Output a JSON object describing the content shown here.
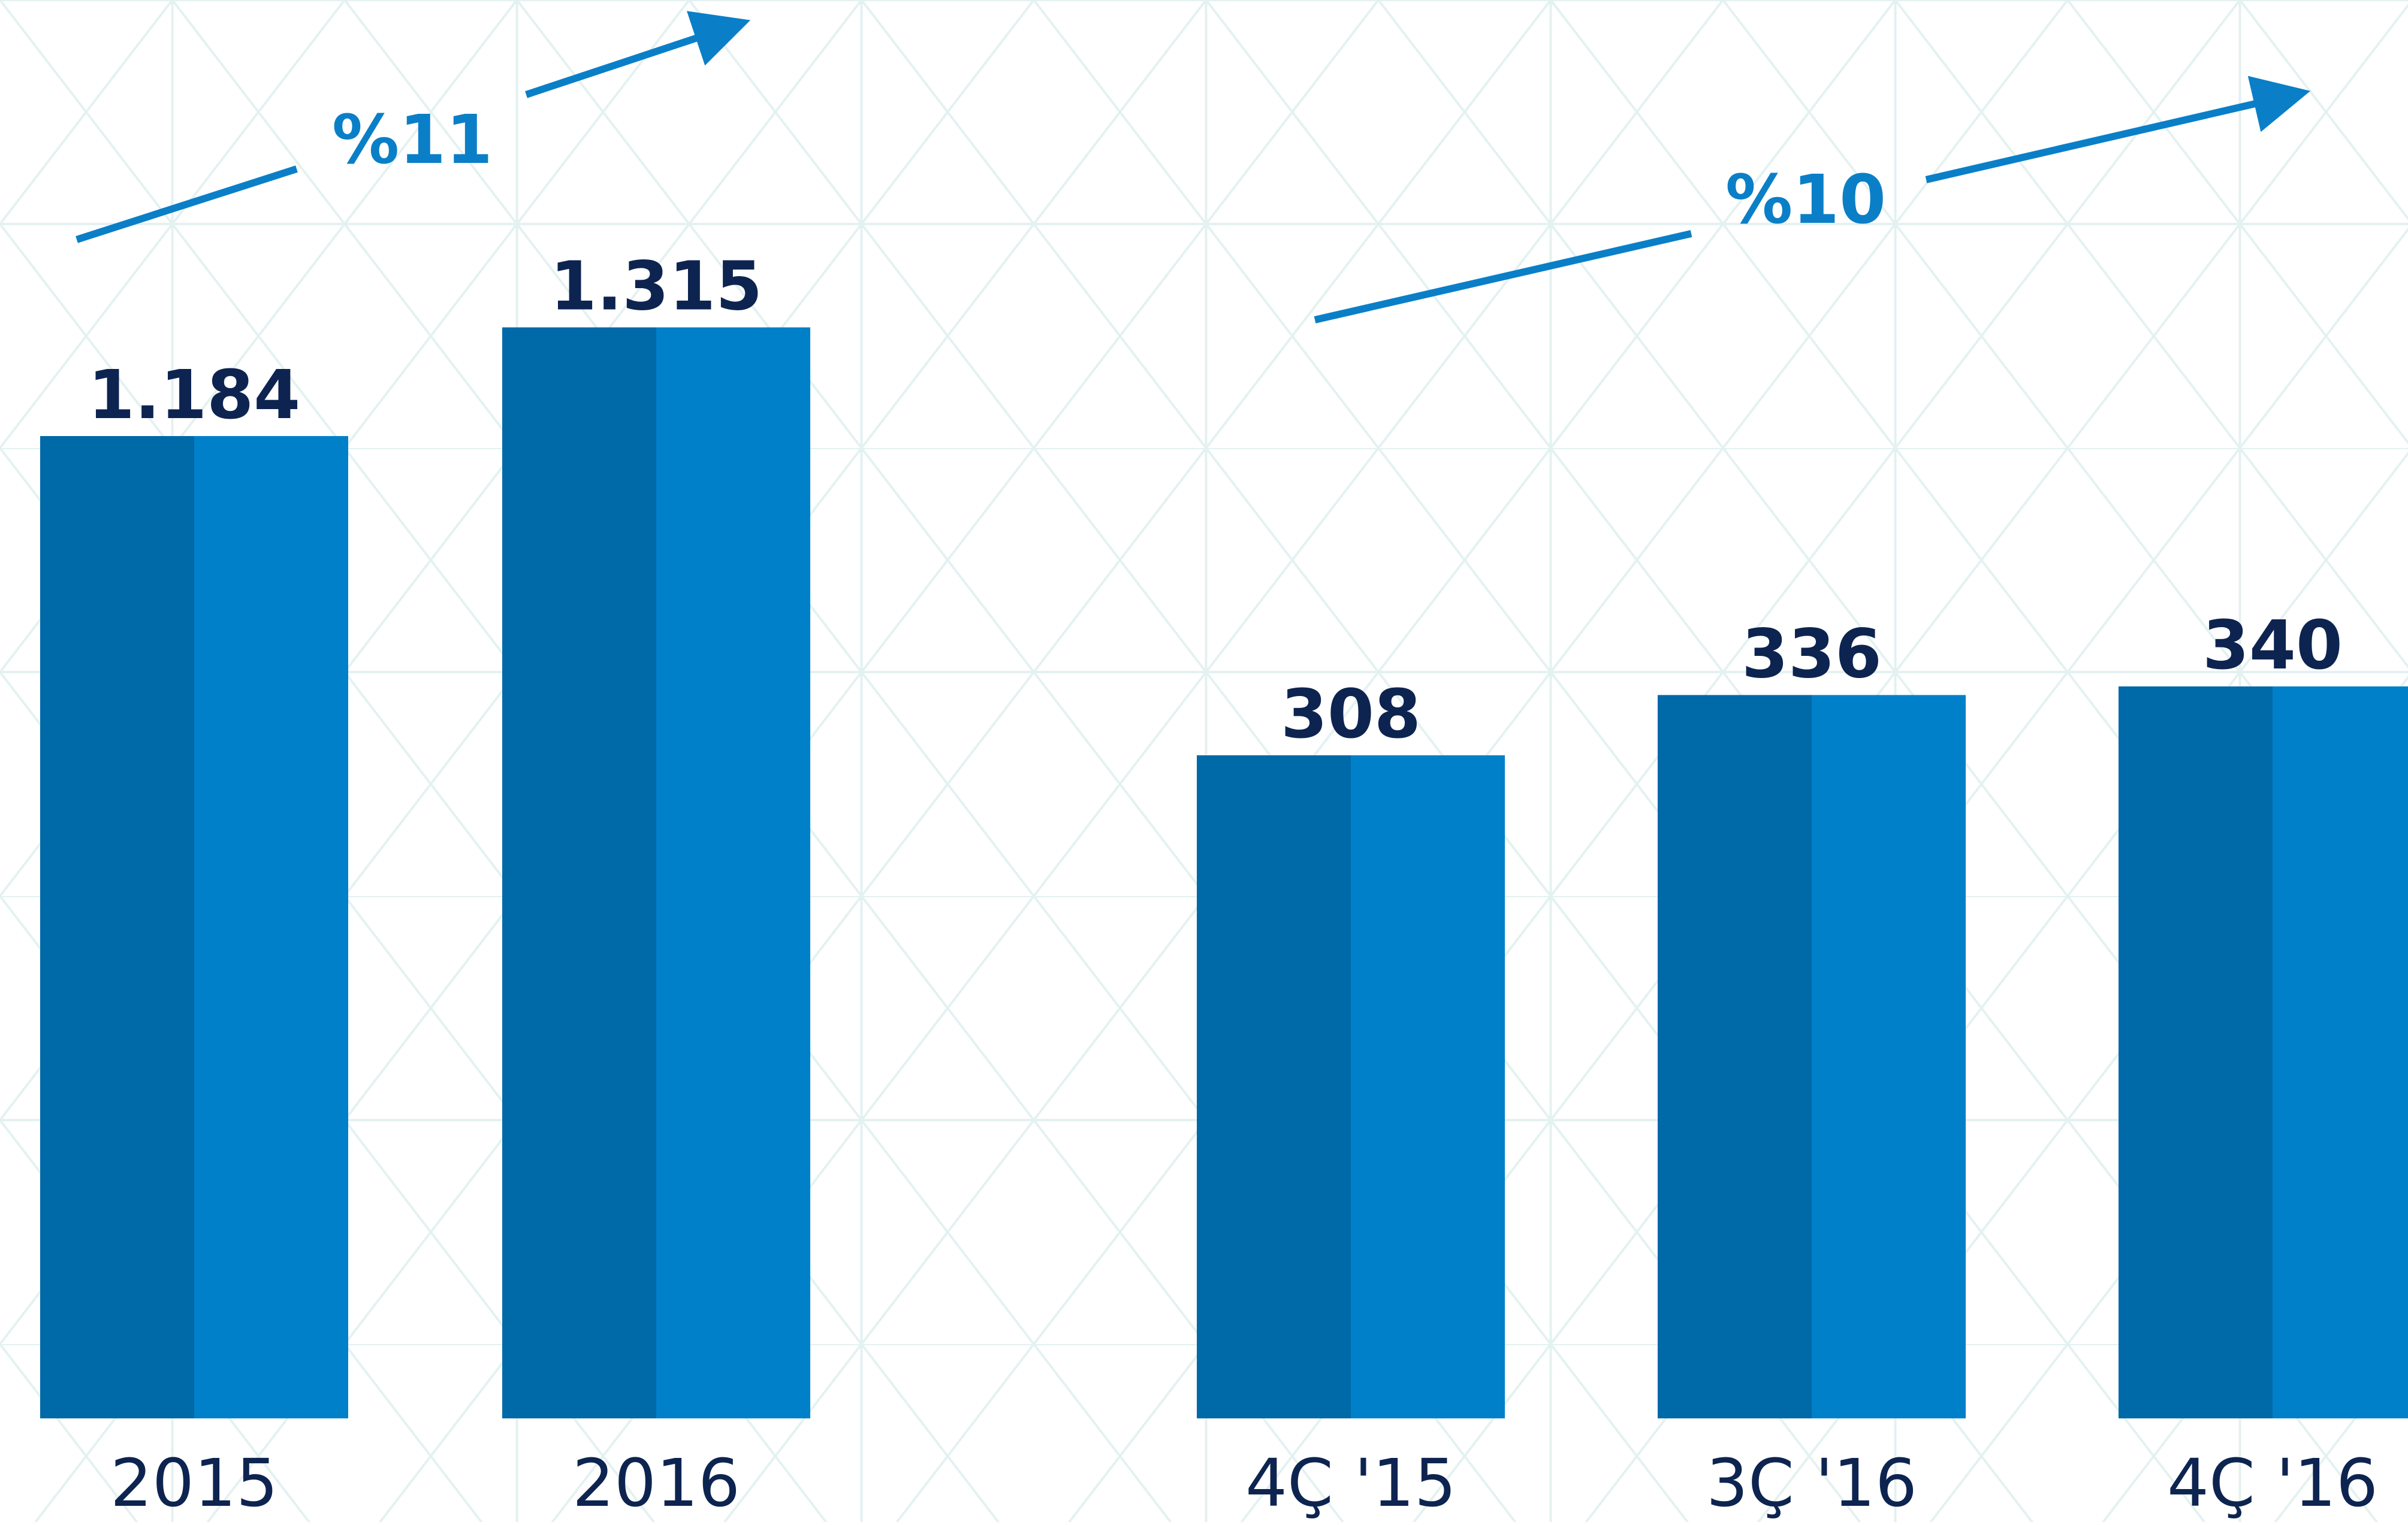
{
  "chart_data": [
    {
      "type": "bar",
      "categories": [
        "2015",
        "2016"
      ],
      "values": [
        1184,
        1315
      ],
      "value_labels": [
        "1.184",
        "1.315"
      ],
      "annotation": "%11",
      "grid": false
    },
    {
      "type": "bar",
      "categories": [
        "4Ç '15",
        "3Ç '16",
        "4Ç '16"
      ],
      "values": [
        308,
        336,
        340
      ],
      "value_labels": [
        "308",
        "336",
        "340"
      ],
      "annotation": "%10",
      "grid": false
    }
  ],
  "colors": {
    "bar_dark": "#0069a8",
    "bar_light": "#0080c9",
    "value_text": "#0d2450",
    "category_text": "#0d2450",
    "growth": "#0a7fc7",
    "background_pattern": "#e4f1f1"
  }
}
